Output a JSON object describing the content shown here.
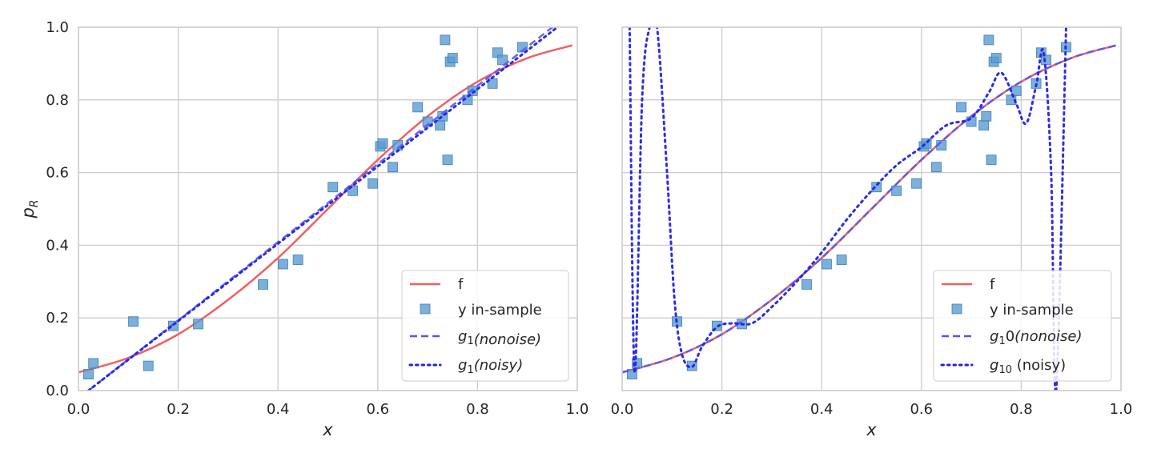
{
  "chart_data": [
    {
      "type": "line",
      "xlabel": "x",
      "ylabel": "p_R",
      "xlim": [
        0.0,
        1.0
      ],
      "ylim": [
        0.0,
        1.0
      ],
      "grid": true,
      "xticks": [
        "0.0",
        "0.2",
        "0.4",
        "0.6",
        "0.8",
        "1.0"
      ],
      "yticks": [
        "0.0",
        "0.2",
        "0.4",
        "0.6",
        "0.8",
        "1.0"
      ],
      "legend_position": "lower-right",
      "legend": [
        {
          "label": "f",
          "style": "solid",
          "color": "#f06060"
        },
        {
          "label": "y in-sample",
          "style": "square-marker",
          "color": "#5b9bd0"
        },
        {
          "label": "g₁(nonoise)",
          "style": "dashed",
          "color": "#5555ee"
        },
        {
          "label": "g₁(noisy)",
          "style": "dotted",
          "color": "#2222e6"
        }
      ],
      "series": [
        {
          "name": "f",
          "x": [
            0.0,
            0.1,
            0.2,
            0.3,
            0.4,
            0.5,
            0.6,
            0.7,
            0.8,
            0.9,
            0.99
          ],
          "values": [
            0.05,
            0.09,
            0.155,
            0.25,
            0.365,
            0.5,
            0.635,
            0.755,
            0.85,
            0.915,
            0.95
          ]
        },
        {
          "name": "g1 (nonoise)",
          "x": [
            0.02,
            0.95
          ],
          "values": [
            0.0,
            1.0
          ]
        },
        {
          "name": "g1 (noisy)",
          "x": [
            0.02,
            0.96
          ],
          "values": [
            0.0,
            1.0
          ]
        }
      ],
      "points": {
        "name": "y in-sample",
        "x": [
          0.02,
          0.03,
          0.11,
          0.14,
          0.19,
          0.24,
          0.37,
          0.41,
          0.44,
          0.51,
          0.55,
          0.59,
          0.605,
          0.61,
          0.63,
          0.64,
          0.68,
          0.7,
          0.725,
          0.73,
          0.735,
          0.74,
          0.745,
          0.75,
          0.78,
          0.79,
          0.83,
          0.84,
          0.85,
          0.89
        ],
        "y": [
          0.045,
          0.075,
          0.19,
          0.068,
          0.178,
          0.183,
          0.292,
          0.348,
          0.36,
          0.56,
          0.55,
          0.57,
          0.672,
          0.68,
          0.615,
          0.675,
          0.78,
          0.74,
          0.73,
          0.755,
          0.965,
          0.635,
          0.905,
          0.915,
          0.8,
          0.825,
          0.845,
          0.93,
          0.91,
          0.945
        ]
      }
    },
    {
      "type": "line",
      "xlabel": "x",
      "ylabel": "",
      "xlim": [
        0.0,
        1.0
      ],
      "ylim": [
        0.0,
        1.0
      ],
      "grid": true,
      "xticks": [
        "0.0",
        "0.2",
        "0.4",
        "0.6",
        "0.8",
        "1.0"
      ],
      "legend_position": "lower-right",
      "legend": [
        {
          "label": "f",
          "style": "solid",
          "color": "#f06060"
        },
        {
          "label": "y in-sample",
          "style": "square-marker",
          "color": "#5b9bd0"
        },
        {
          "label": "g₁0(nonoise)",
          "style": "dashed",
          "color": "#5555ee"
        },
        {
          "label": "g₁₀ (noisy)",
          "style": "dotted",
          "color": "#2222e6"
        }
      ],
      "series": [
        {
          "name": "f",
          "x": [
            0.0,
            0.1,
            0.2,
            0.3,
            0.4,
            0.5,
            0.6,
            0.7,
            0.8,
            0.9,
            0.99
          ],
          "values": [
            0.05,
            0.09,
            0.155,
            0.25,
            0.365,
            0.5,
            0.635,
            0.755,
            0.85,
            0.915,
            0.95
          ]
        },
        {
          "name": "g10 (nonoise)",
          "x": [
            0.0,
            0.1,
            0.2,
            0.3,
            0.4,
            0.5,
            0.6,
            0.7,
            0.8,
            0.9,
            0.99
          ],
          "values": [
            0.05,
            0.09,
            0.155,
            0.25,
            0.365,
            0.5,
            0.635,
            0.755,
            0.85,
            0.915,
            0.95
          ]
        },
        {
          "name": "g10 (noisy)",
          "x": [
            0.015,
            0.025,
            0.04,
            0.055,
            0.07,
            0.09,
            0.105,
            0.12,
            0.14,
            0.16,
            0.19,
            0.22,
            0.26,
            0.3,
            0.35,
            0.4,
            0.45,
            0.5,
            0.55,
            0.6,
            0.65,
            0.7,
            0.735,
            0.76,
            0.79,
            0.81,
            0.83,
            0.845,
            0.86,
            0.87,
            0.89
          ],
          "values": [
            1.0,
            0.05,
            0.8,
            1.0,
            1.0,
            0.6,
            0.25,
            0.1,
            0.065,
            0.12,
            0.175,
            0.185,
            0.185,
            0.23,
            0.3,
            0.38,
            0.47,
            0.55,
            0.62,
            0.67,
            0.73,
            0.75,
            0.82,
            0.875,
            0.79,
            0.735,
            0.84,
            0.93,
            0.6,
            0.0,
            1.0
          ]
        }
      ],
      "points": {
        "name": "y in-sample",
        "x": [
          0.02,
          0.03,
          0.11,
          0.14,
          0.19,
          0.24,
          0.37,
          0.41,
          0.44,
          0.51,
          0.55,
          0.59,
          0.605,
          0.61,
          0.63,
          0.64,
          0.68,
          0.7,
          0.725,
          0.73,
          0.735,
          0.74,
          0.745,
          0.75,
          0.78,
          0.79,
          0.83,
          0.84,
          0.85,
          0.89
        ],
        "y": [
          0.045,
          0.075,
          0.19,
          0.068,
          0.178,
          0.183,
          0.292,
          0.348,
          0.36,
          0.56,
          0.55,
          0.57,
          0.672,
          0.68,
          0.615,
          0.675,
          0.78,
          0.74,
          0.73,
          0.755,
          0.965,
          0.635,
          0.905,
          0.915,
          0.8,
          0.825,
          0.845,
          0.93,
          0.91,
          0.945
        ]
      }
    }
  ],
  "panels": [
    {
      "legend_labels": {
        "f": "f",
        "y": "y in-sample",
        "g_nonoise_sub": "1",
        "g_nonoise_tail": "(nonoise)",
        "g_nonoise_mid": "",
        "g_noisy_sub": "1",
        "g_noisy_tail": "(noisy)"
      },
      "ylabel_main": "p",
      "ylabel_sub": "R"
    },
    {
      "legend_labels": {
        "f": "f",
        "y": "y in-sample",
        "g_nonoise_sub": "1",
        "g_nonoise_mid": "0",
        "g_nonoise_tail": "(nonoise)",
        "g_noisy_sub": "10",
        "g_noisy_tail": " (noisy)"
      }
    }
  ]
}
